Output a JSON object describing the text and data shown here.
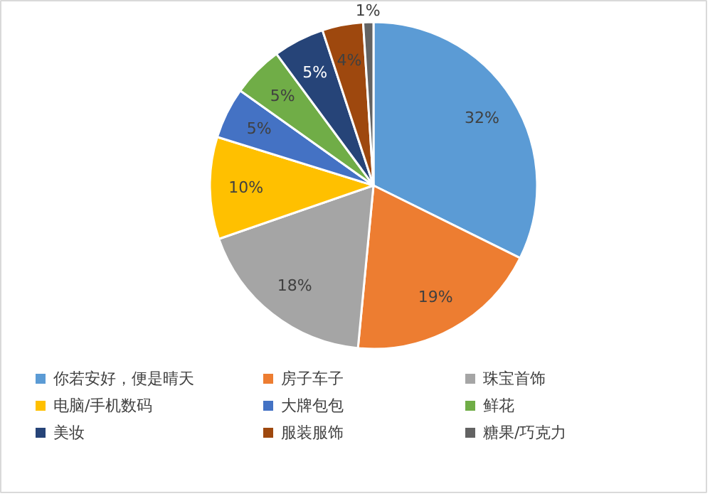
{
  "chart_data": {
    "type": "pie",
    "categories": [
      "你若安好，便是晴天",
      "房子车子",
      "珠宝首饰",
      "电脑/手机数码",
      "大牌包包",
      "鲜花",
      "美妆",
      "服装服饰",
      "糖果/巧克力"
    ],
    "values": [
      32,
      19,
      18,
      10,
      5,
      5,
      5,
      4,
      1
    ],
    "colors": [
      "#5b9bd5",
      "#ed7d31",
      "#a5a5a5",
      "#ffc000",
      "#4472c4",
      "#70ad47",
      "#264478",
      "#9e480e",
      "#636363"
    ],
    "value_labels": [
      "32%",
      "19%",
      "18%",
      "10%",
      "5%",
      "5%",
      "5%",
      "4%",
      "1%"
    ],
    "legend": "bottom"
  }
}
